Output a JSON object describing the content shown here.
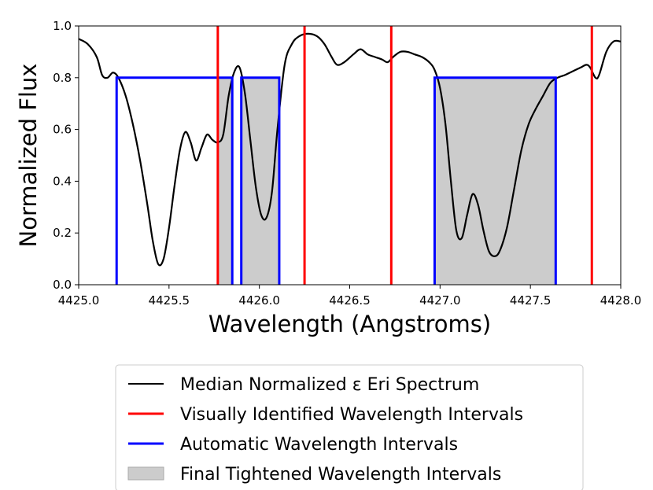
{
  "chart_data": {
    "type": "line",
    "title": "",
    "xlabel": "Wavelength (Angstroms)",
    "ylabel": "Normalized Flux",
    "xlim": [
      4425.0,
      4428.0
    ],
    "ylim": [
      0.0,
      1.0
    ],
    "xticks": [
      4425.0,
      4425.5,
      4426.0,
      4426.5,
      4427.0,
      4427.5,
      4428.0
    ],
    "xtick_labels": [
      "4425.0",
      "4425.5",
      "4426.0",
      "4426.5",
      "4427.0",
      "4427.5",
      "4428.0"
    ],
    "yticks": [
      0.0,
      0.2,
      0.4,
      0.6,
      0.8,
      1.0
    ],
    "ytick_labels": [
      "0.0",
      "0.2",
      "0.4",
      "0.6",
      "0.8",
      "1.0"
    ],
    "grid": false,
    "legend_position": "below",
    "colors": {
      "spectrum": "#000000",
      "visual": "#ff0000",
      "automatic": "#0000ff",
      "final_fill": "#cccccc",
      "final_edge": "#aaaaaa"
    },
    "spectrum": {
      "name": "Median Normalized ε Eri Spectrum",
      "points": [
        [
          4425.0,
          0.95
        ],
        [
          4425.05,
          0.93
        ],
        [
          4425.1,
          0.88
        ],
        [
          4425.13,
          0.81
        ],
        [
          4425.16,
          0.8
        ],
        [
          4425.19,
          0.82
        ],
        [
          4425.22,
          0.8
        ],
        [
          4425.26,
          0.73
        ],
        [
          4425.3,
          0.62
        ],
        [
          4425.34,
          0.48
        ],
        [
          4425.38,
          0.31
        ],
        [
          4425.41,
          0.17
        ],
        [
          4425.44,
          0.08
        ],
        [
          4425.47,
          0.1
        ],
        [
          4425.5,
          0.22
        ],
        [
          4425.53,
          0.38
        ],
        [
          4425.56,
          0.52
        ],
        [
          4425.59,
          0.59
        ],
        [
          4425.62,
          0.55
        ],
        [
          4425.65,
          0.48
        ],
        [
          4425.68,
          0.53
        ],
        [
          4425.71,
          0.58
        ],
        [
          4425.74,
          0.56
        ],
        [
          4425.77,
          0.55
        ],
        [
          4425.8,
          0.58
        ],
        [
          4425.83,
          0.73
        ],
        [
          4425.86,
          0.82
        ],
        [
          4425.89,
          0.84
        ],
        [
          4425.92,
          0.74
        ],
        [
          4425.95,
          0.56
        ],
        [
          4425.98,
          0.38
        ],
        [
          4426.01,
          0.27
        ],
        [
          4426.04,
          0.26
        ],
        [
          4426.07,
          0.36
        ],
        [
          4426.1,
          0.6
        ],
        [
          4426.14,
          0.85
        ],
        [
          4426.18,
          0.93
        ],
        [
          4426.22,
          0.96
        ],
        [
          4426.27,
          0.97
        ],
        [
          4426.32,
          0.96
        ],
        [
          4426.36,
          0.93
        ],
        [
          4426.4,
          0.88
        ],
        [
          4426.43,
          0.85
        ],
        [
          4426.47,
          0.86
        ],
        [
          4426.52,
          0.89
        ],
        [
          4426.56,
          0.91
        ],
        [
          4426.6,
          0.89
        ],
        [
          4426.64,
          0.88
        ],
        [
          4426.68,
          0.87
        ],
        [
          4426.71,
          0.86
        ],
        [
          4426.74,
          0.88
        ],
        [
          4426.78,
          0.9
        ],
        [
          4426.82,
          0.9
        ],
        [
          4426.86,
          0.89
        ],
        [
          4426.9,
          0.88
        ],
        [
          4426.94,
          0.86
        ],
        [
          4426.97,
          0.83
        ],
        [
          4427.0,
          0.76
        ],
        [
          4427.03,
          0.62
        ],
        [
          4427.06,
          0.4
        ],
        [
          4427.09,
          0.21
        ],
        [
          4427.12,
          0.18
        ],
        [
          4427.15,
          0.27
        ],
        [
          4427.18,
          0.35
        ],
        [
          4427.21,
          0.31
        ],
        [
          4427.24,
          0.21
        ],
        [
          4427.27,
          0.13
        ],
        [
          4427.3,
          0.11
        ],
        [
          4427.33,
          0.13
        ],
        [
          4427.37,
          0.22
        ],
        [
          4427.41,
          0.37
        ],
        [
          4427.45,
          0.52
        ],
        [
          4427.49,
          0.62
        ],
        [
          4427.53,
          0.68
        ],
        [
          4427.57,
          0.73
        ],
        [
          4427.61,
          0.78
        ],
        [
          4427.65,
          0.8
        ],
        [
          4427.69,
          0.81
        ],
        [
          4427.72,
          0.82
        ],
        [
          4427.75,
          0.83
        ],
        [
          4427.78,
          0.84
        ],
        [
          4427.81,
          0.85
        ],
        [
          4427.83,
          0.84
        ],
        [
          4427.86,
          0.8
        ],
        [
          4427.88,
          0.81
        ],
        [
          4427.92,
          0.9
        ],
        [
          4427.96,
          0.94
        ],
        [
          4428.0,
          0.94
        ]
      ]
    },
    "visual_intervals": {
      "name": "Visually Identified Wavelength Intervals",
      "x": [
        4425.77,
        4426.25,
        4426.73,
        4427.84
      ]
    },
    "automatic_intervals": {
      "name": "Automatic Wavelength Intervals",
      "y": 0.8,
      "ranges": [
        [
          4425.21,
          4425.85
        ],
        [
          4425.9,
          4426.11
        ],
        [
          4426.97,
          4427.64
        ]
      ]
    },
    "final_intervals": {
      "name": "Final Tightened Wavelength Intervals",
      "y": 0.8,
      "ranges": [
        [
          4425.77,
          4425.85
        ],
        [
          4425.9,
          4426.11
        ],
        [
          4426.97,
          4427.64
        ]
      ]
    }
  }
}
